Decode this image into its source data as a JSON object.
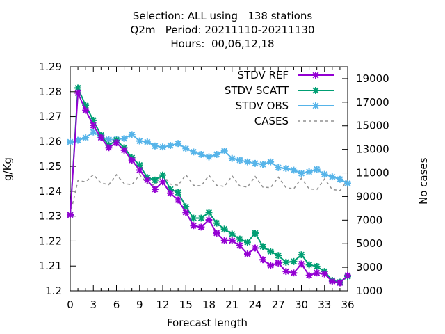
{
  "title_lines": [
    "Selection: ALL using   138 stations",
    "Q2m   Period: 20211110-20211130",
    "Hours:  00,06,12,18"
  ],
  "chart_data": {
    "type": "line",
    "ylabel": "g/Kg",
    "y2label": "No cases",
    "xlabel": "Forecast length",
    "xlim": [
      0,
      36
    ],
    "ylim": [
      1.2,
      1.29
    ],
    "y2lim": [
      1000,
      20000
    ],
    "xticks": [
      0,
      3,
      6,
      9,
      12,
      15,
      18,
      21,
      24,
      27,
      30,
      33,
      36
    ],
    "yticks": [
      "1.2",
      "1.21",
      "1.22",
      "1.23",
      "1.24",
      "1.25",
      "1.26",
      "1.27",
      "1.28",
      "1.29"
    ],
    "y2ticks": [
      "1000",
      "3000",
      "5000",
      "7000",
      "9000",
      "11000",
      "13000",
      "15000",
      "17000",
      "19000"
    ],
    "x": [
      0,
      1,
      2,
      3,
      4,
      5,
      6,
      7,
      8,
      9,
      10,
      11,
      12,
      13,
      14,
      15,
      16,
      17,
      18,
      19,
      20,
      21,
      22,
      23,
      24,
      25,
      26,
      27,
      28,
      29,
      30,
      31,
      32,
      33,
      34,
      35,
      36
    ],
    "legend_position": "top-right",
    "series": [
      {
        "name": "STDV REF",
        "color": "#9400d3",
        "axis": "y",
        "style": "line-marker",
        "values": [
          1.2305,
          1.2795,
          1.2725,
          1.2665,
          1.2615,
          1.2575,
          1.2595,
          1.2565,
          1.2525,
          1.2485,
          1.2445,
          1.2408,
          1.2438,
          1.2392,
          1.2365,
          1.2315,
          1.2262,
          1.2256,
          1.2285,
          1.2232,
          1.2202,
          1.2202,
          1.2182,
          1.2148,
          1.2172,
          1.2125,
          1.2102,
          1.2112,
          1.2078,
          1.2072,
          1.2108,
          1.2062,
          1.2072,
          1.2068,
          1.2038,
          1.2032,
          1.2062
        ]
      },
      {
        "name": "STDV SCATT",
        "color": "#009e73",
        "axis": "y",
        "style": "line-marker",
        "values": [
          1.2305,
          1.2815,
          1.2745,
          1.2685,
          1.2625,
          1.2585,
          1.2605,
          1.2575,
          1.2535,
          1.2505,
          1.2455,
          1.2445,
          1.2465,
          1.2408,
          1.2395,
          1.2338,
          1.2292,
          1.2292,
          1.2315,
          1.2272,
          1.2248,
          1.2228,
          1.2208,
          1.2195,
          1.2232,
          1.2178,
          1.2158,
          1.2142,
          1.2115,
          1.2118,
          1.2145,
          1.2105,
          1.2098,
          1.2078,
          1.2042,
          1.2035,
          1.2058
        ]
      },
      {
        "name": "STDV OBS",
        "color": "#56b4e9",
        "axis": "y",
        "style": "line-marker",
        "values": [
          1.2598,
          1.2605,
          1.2615,
          1.2638,
          1.2618,
          1.2608,
          1.2608,
          1.2612,
          1.2628,
          1.2602,
          1.2598,
          1.2582,
          1.2578,
          1.2584,
          1.2592,
          1.2572,
          1.2558,
          1.2548,
          1.2538,
          1.2548,
          1.2562,
          1.2532,
          1.2525,
          1.2518,
          1.2512,
          1.2508,
          1.2518,
          1.2495,
          1.2492,
          1.2485,
          1.2472,
          1.2478,
          1.2488,
          1.2468,
          1.2458,
          1.2448,
          1.2432
        ]
      },
      {
        "name": "CASES",
        "color": "#909090",
        "axis": "y2",
        "style": "dashed",
        "values": [
          7450,
          10350,
          10250,
          10850,
          10150,
          10000,
          10850,
          10100,
          10000,
          10850,
          10100,
          9950,
          10850,
          10050,
          9950,
          10850,
          9950,
          9900,
          10800,
          9950,
          9850,
          10750,
          9900,
          9800,
          10700,
          9800,
          9750,
          10650,
          9750,
          9650,
          10550,
          9650,
          9600,
          10500,
          9600,
          9500,
          10400
        ]
      }
    ]
  }
}
